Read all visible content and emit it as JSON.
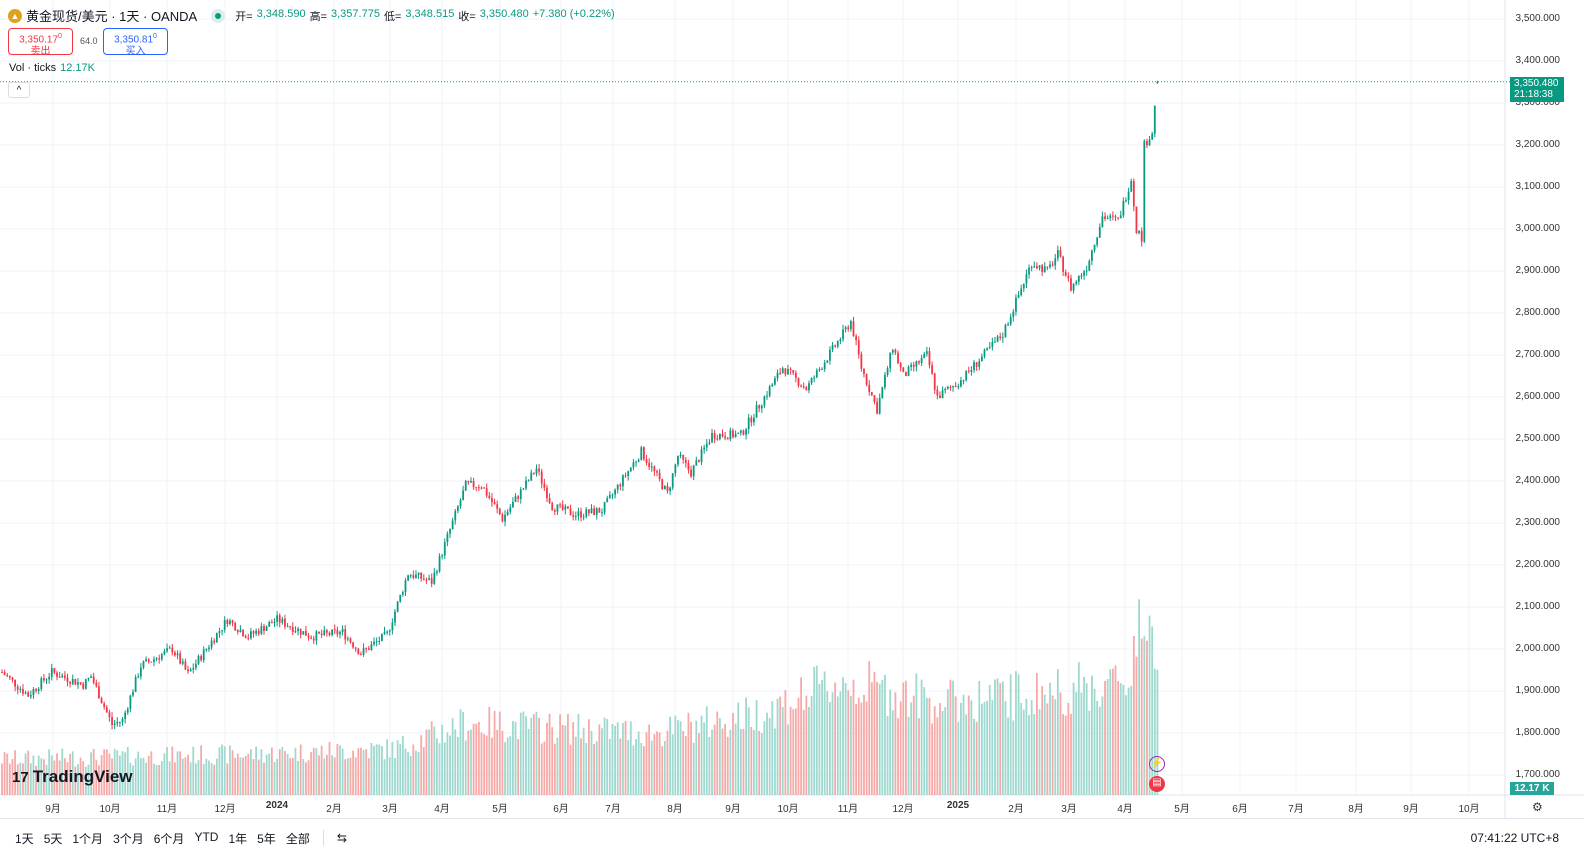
{
  "header": {
    "symbol": "黄金现货/美元 · 1天 · OANDA",
    "open_label": "开=",
    "open": "3,348.590",
    "high_label": "高=",
    "high": "3,357.775",
    "low_label": "低=",
    "low": "3,348.515",
    "close_label": "收=",
    "close": "3,350.480",
    "change": "+7.380 (+0.22%)"
  },
  "trade": {
    "sell_price": "3,350.17",
    "sell_sup": "0",
    "sell_label": "卖出",
    "spread": "64.0",
    "buy_price": "3,350.81",
    "buy_sup": "0",
    "buy_label": "买入"
  },
  "volume": {
    "label": "Vol · ticks",
    "value": "12.17K",
    "badge": "12.17 K"
  },
  "current": {
    "price": "3,350.480",
    "countdown": "21:18:38"
  },
  "price_axis": [
    "3,500.000",
    "3,400.000",
    "3,300.000",
    "3,200.000",
    "3,100.000",
    "3,000.000",
    "2,900.000",
    "2,800.000",
    "2,700.000",
    "2,600.000",
    "2,500.000",
    "2,400.000",
    "2,300.000",
    "2,200.000",
    "2,100.000",
    "2,000.000",
    "1,900.000",
    "1,800.000",
    "1,700.000"
  ],
  "time_axis": [
    {
      "t": "9月"
    },
    {
      "t": "10月"
    },
    {
      "t": "11月"
    },
    {
      "t": "12月"
    },
    {
      "t": "2024",
      "bold": true
    },
    {
      "t": "2月"
    },
    {
      "t": "3月"
    },
    {
      "t": "4月"
    },
    {
      "t": "5月"
    },
    {
      "t": "6月"
    },
    {
      "t": "7月"
    },
    {
      "t": "8月"
    },
    {
      "t": "9月"
    },
    {
      "t": "10月"
    },
    {
      "t": "11月"
    },
    {
      "t": "12月"
    },
    {
      "t": "2025",
      "bold": true
    },
    {
      "t": "2月"
    },
    {
      "t": "3月"
    },
    {
      "t": "4月"
    },
    {
      "t": "5月"
    },
    {
      "t": "6月"
    },
    {
      "t": "7月"
    },
    {
      "t": "8月"
    },
    {
      "t": "9月"
    },
    {
      "t": "10月"
    }
  ],
  "ranges": [
    "1天",
    "5天",
    "1个月",
    "3个月",
    "6个月",
    "YTD",
    "1年",
    "5年",
    "全部"
  ],
  "clock": "07:41:22 UTC+8",
  "brand": "TradingView",
  "colors": {
    "up": "#089981",
    "down": "#f23645",
    "vol_up": "#9fd8cf",
    "vol_down": "#f7a9a7"
  },
  "chart_data": {
    "type": "candlestick",
    "title": "黄金现货/美元 1天",
    "ylim": [
      1650,
      3530
    ],
    "close_anchors": [
      [
        0,
        1945
      ],
      [
        10,
        1890
      ],
      [
        19,
        1945
      ],
      [
        31,
        1915
      ],
      [
        34,
        1935
      ],
      [
        42,
        1820
      ],
      [
        46,
        1830
      ],
      [
        53,
        1960
      ],
      [
        65,
        2000
      ],
      [
        71,
        1940
      ],
      [
        86,
        2070
      ],
      [
        94,
        2030
      ],
      [
        105,
        2070
      ],
      [
        118,
        2030
      ],
      [
        130,
        2040
      ],
      [
        137,
        1990
      ],
      [
        147,
        2035
      ],
      [
        155,
        2180
      ],
      [
        164,
        2160
      ],
      [
        177,
        2390
      ],
      [
        183,
        2390
      ],
      [
        191,
        2310
      ],
      [
        204,
        2430
      ],
      [
        210,
        2340
      ],
      [
        219,
        2320
      ],
      [
        229,
        2330
      ],
      [
        244,
        2470
      ],
      [
        254,
        2370
      ],
      [
        258,
        2460
      ],
      [
        263,
        2420
      ],
      [
        271,
        2510
      ],
      [
        282,
        2510
      ],
      [
        298,
        2670
      ],
      [
        307,
        2620
      ],
      [
        321,
        2750
      ],
      [
        324,
        2780
      ],
      [
        328,
        2670
      ],
      [
        334,
        2570
      ],
      [
        340,
        2720
      ],
      [
        344,
        2650
      ],
      [
        353,
        2700
      ],
      [
        357,
        2600
      ],
      [
        366,
        2640
      ],
      [
        382,
        2750
      ],
      [
        393,
        2920
      ],
      [
        399,
        2900
      ],
      [
        403,
        2940
      ],
      [
        408,
        2860
      ],
      [
        414,
        2910
      ],
      [
        420,
        3030
      ],
      [
        426,
        3020
      ],
      [
        431,
        3120
      ],
      [
        433,
        3000
      ],
      [
        435,
        2980
      ],
      [
        436,
        3200
      ],
      [
        439,
        3230
      ],
      [
        441,
        3350
      ]
    ],
    "volume_anchors_k": [
      [
        0,
        3.5
      ],
      [
        100,
        4
      ],
      [
        150,
        4.5
      ],
      [
        177,
        7
      ],
      [
        250,
        6
      ],
      [
        290,
        8
      ],
      [
        320,
        11
      ],
      [
        360,
        9
      ],
      [
        400,
        10
      ],
      [
        430,
        11
      ],
      [
        434,
        18
      ],
      [
        436,
        16
      ],
      [
        441,
        12.17
      ]
    ]
  }
}
